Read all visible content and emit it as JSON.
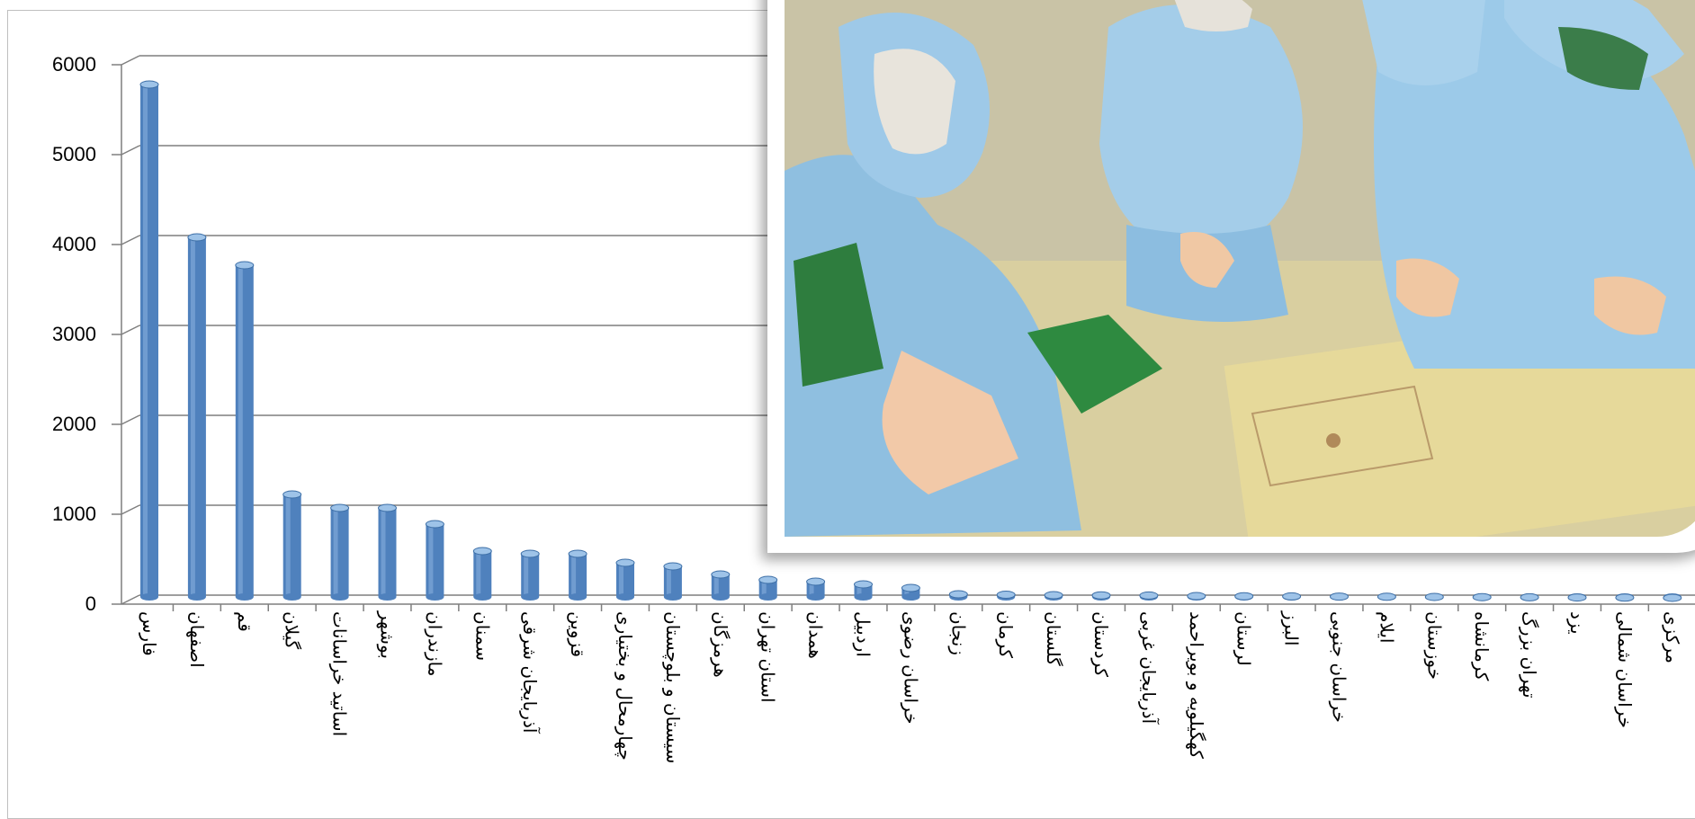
{
  "chart_data": {
    "type": "bar",
    "title": "",
    "xlabel": "",
    "ylabel": "",
    "ylim": [
      0,
      6000
    ],
    "yticks": [
      0,
      1000,
      2000,
      3000,
      4000,
      5000,
      6000
    ],
    "grid": true,
    "bar_color": "#4f81bd",
    "categories": [
      "فارس",
      "اصفهان",
      "قم",
      "گیلان",
      "اساتید خراسانات",
      "بوشهر",
      "مازندران",
      "سمنان",
      "آذربایجان شرقی",
      "قزوین",
      "چهارمحال و بختیاری",
      "سیستان و بلوچستان",
      "هرمزگان",
      "استان تهران",
      "همدان",
      "اردبیل",
      "خراسان رضوی",
      "زنجان",
      "کرمان",
      "گلستان",
      "کردستان",
      "آذربایجان غربی",
      "کهگیلویه و بویراحمد",
      "لرستان",
      "البرز",
      "خراسان جنوبی",
      "ایلام",
      "خوزستان",
      "کرمانشاه",
      "تهران بزرگ",
      "یزد",
      "خراسان شمالی",
      "مرکزی"
    ],
    "values": [
      5720,
      4020,
      3710,
      1160,
      1010,
      1010,
      830,
      530,
      500,
      500,
      400,
      360,
      270,
      210,
      190,
      160,
      120,
      50,
      45,
      40,
      38,
      36,
      30,
      28,
      26,
      24,
      22,
      20,
      18,
      16,
      14,
      12,
      10
    ]
  },
  "photo": {
    "description_icon": "photo-students-in-protective-suits"
  }
}
